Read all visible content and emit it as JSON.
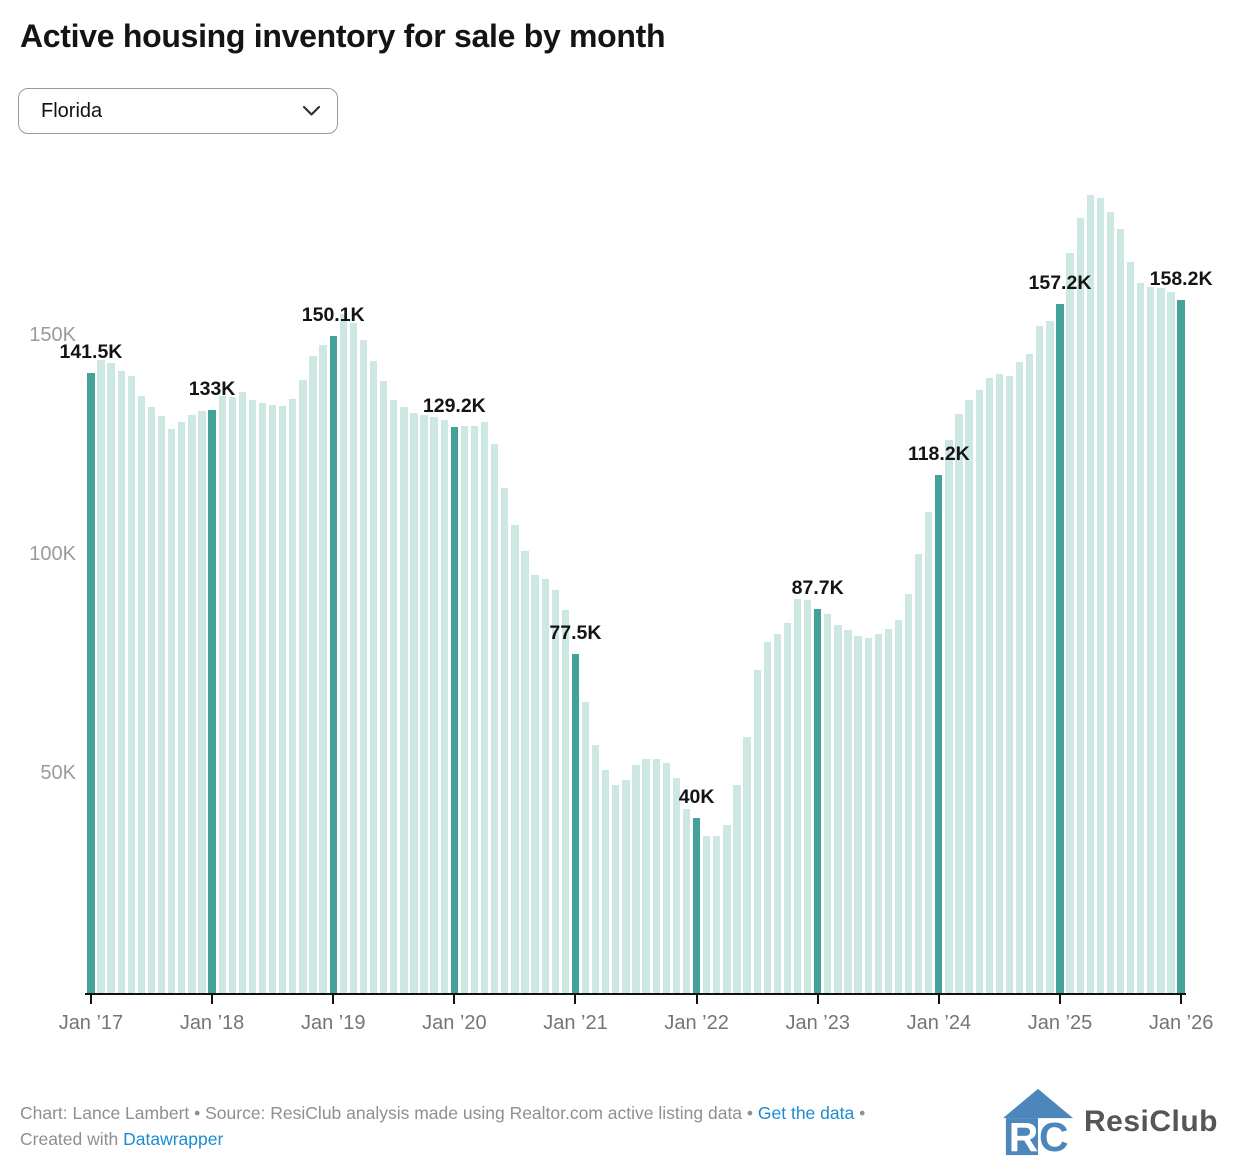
{
  "header": {
    "title": "Active housing inventory for sale by month"
  },
  "selector": {
    "value": "Florida"
  },
  "chart_data": {
    "type": "bar",
    "title": "Active housing inventory for sale by month",
    "region_selected": "Florida",
    "frequency": "monthly",
    "x_range": "Jan 2017 – Jan 2026",
    "units": "thousands of active listings (K)",
    "grid": false,
    "ylim": [
      0,
      190
    ],
    "values": [
      141.5,
      144.5,
      143.8,
      142.0,
      140.8,
      136.2,
      133.8,
      131.8,
      128.8,
      130.4,
      131.9,
      132.9,
      133.0,
      136.4,
      136.0,
      137.2,
      135.5,
      134.8,
      134.2,
      134.0,
      135.7,
      139.9,
      145.4,
      147.9,
      150.1,
      155.0,
      153.0,
      149.2,
      144.4,
      139.7,
      135.3,
      133.8,
      132.4,
      131.9,
      131.5,
      130.9,
      129.2,
      129.4,
      129.4,
      130.4,
      125.4,
      115.4,
      106.9,
      100.8,
      95.5,
      94.5,
      92.0,
      87.4,
      77.5,
      66.4,
      56.7,
      51.0,
      47.6,
      48.6,
      52.0,
      53.5,
      53.5,
      52.4,
      49.1,
      42.1,
      40.0,
      35.8,
      35.8,
      38.3,
      47.4,
      58.4,
      73.8,
      80.1,
      81.9,
      84.5,
      89.9,
      89.7,
      87.7,
      86.6,
      84.1,
      82.8,
      81.4,
      81.1,
      82.0,
      83.2,
      85.2,
      91.2,
      100.3,
      109.8,
      118.2,
      126.3,
      132.3,
      135.5,
      137.7,
      140.4,
      141.4,
      140.9,
      144.1,
      145.8,
      152.2,
      153.4,
      157.2,
      169.0,
      177.0,
      182.3,
      181.4,
      178.4,
      174.5,
      167.0,
      162.0,
      161.3,
      161.0,
      160.0,
      158.2
    ],
    "annotations": [
      {
        "index": 0,
        "label": "141.5K"
      },
      {
        "index": 12,
        "label": "133K"
      },
      {
        "index": 24,
        "label": "150.1K"
      },
      {
        "index": 36,
        "label": "129.2K"
      },
      {
        "index": 48,
        "label": "77.5K"
      },
      {
        "index": 60,
        "label": "40K"
      },
      {
        "index": 72,
        "label": "87.7K"
      },
      {
        "index": 84,
        "label": "118.2K"
      },
      {
        "index": 96,
        "label": "157.2K"
      },
      {
        "index": 108,
        "label": "158.2K"
      }
    ],
    "x_ticks": [
      {
        "index": 0,
        "label": "Jan ’17"
      },
      {
        "index": 12,
        "label": "Jan ’18"
      },
      {
        "index": 24,
        "label": "Jan ’19"
      },
      {
        "index": 36,
        "label": "Jan ’20"
      },
      {
        "index": 48,
        "label": "Jan ’21"
      },
      {
        "index": 60,
        "label": "Jan ’22"
      },
      {
        "index": 72,
        "label": "Jan ’23"
      },
      {
        "index": 84,
        "label": "Jan ’24"
      },
      {
        "index": 96,
        "label": "Jan ’25"
      },
      {
        "index": 108,
        "label": "Jan ’26"
      }
    ],
    "y_ticks": [
      {
        "value": 150,
        "label": "150K"
      },
      {
        "value": 100,
        "label": "100K"
      },
      {
        "value": 50,
        "label": "50K"
      }
    ],
    "colors": {
      "bar": "#cde7e3",
      "highlight": "#45a29b",
      "axis_line": "#111111",
      "x_tick_label": "#757575",
      "y_tick_label": "#9b9b9b",
      "annotation": "#141414"
    }
  },
  "footer": {
    "text_before": "Chart: Lance Lambert • Source: ResiClub analysis made using Realtor.com active listing data • ",
    "link_get_data": "Get the data",
    "text_between": " • Created with ",
    "link_datawrapper": "Datawrapper",
    "text_color": "#8f8f8f",
    "link_color": "#1e8bd1"
  },
  "logo": {
    "text": "ResiClub",
    "icon_color": "#4d86bb"
  }
}
